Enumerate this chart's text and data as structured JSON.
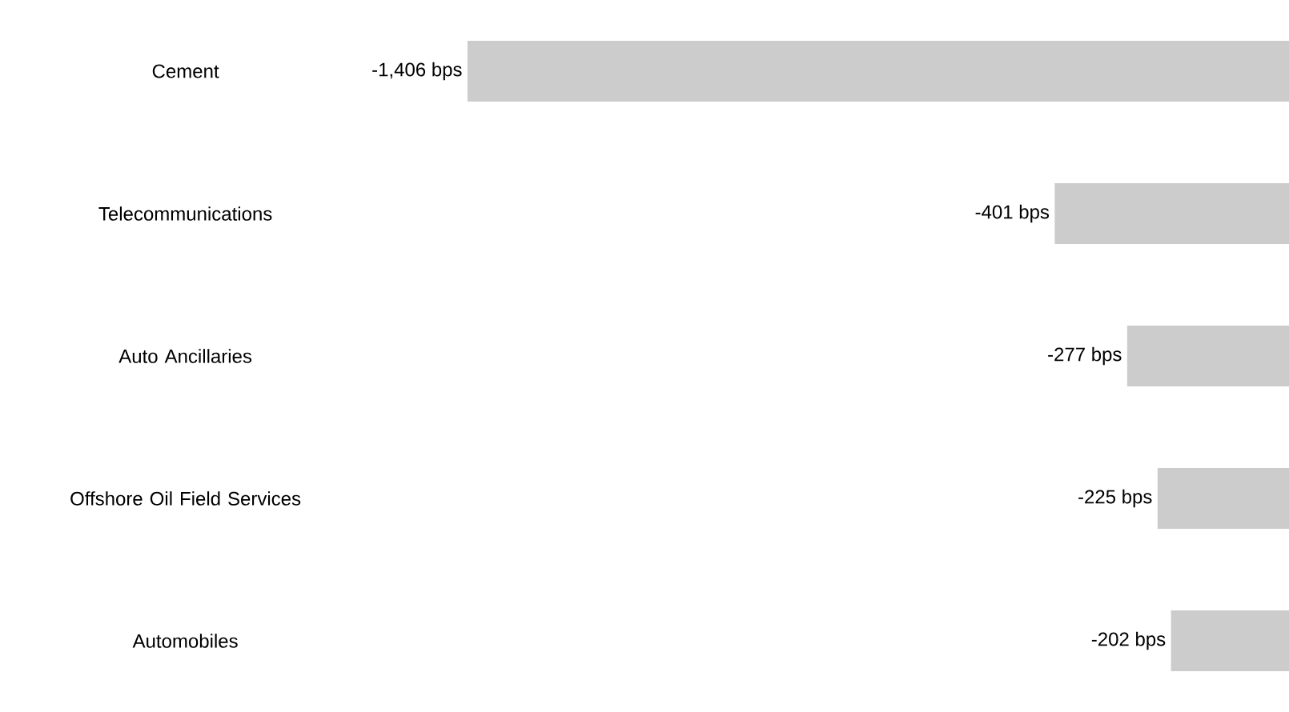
{
  "chart_data": {
    "type": "bar",
    "orientation": "horizontal",
    "categories": [
      "Cement",
      "Telecommunications",
      "Auto Ancillaries",
      "Offshore Oil Field Services",
      "Automobiles"
    ],
    "values": [
      -1406,
      -401,
      -277,
      -225,
      -202
    ],
    "value_labels": [
      "-1,406 bps",
      "-401 bps",
      "-277 bps",
      "-225 bps",
      "-202 bps"
    ],
    "color": "#cccccc"
  }
}
